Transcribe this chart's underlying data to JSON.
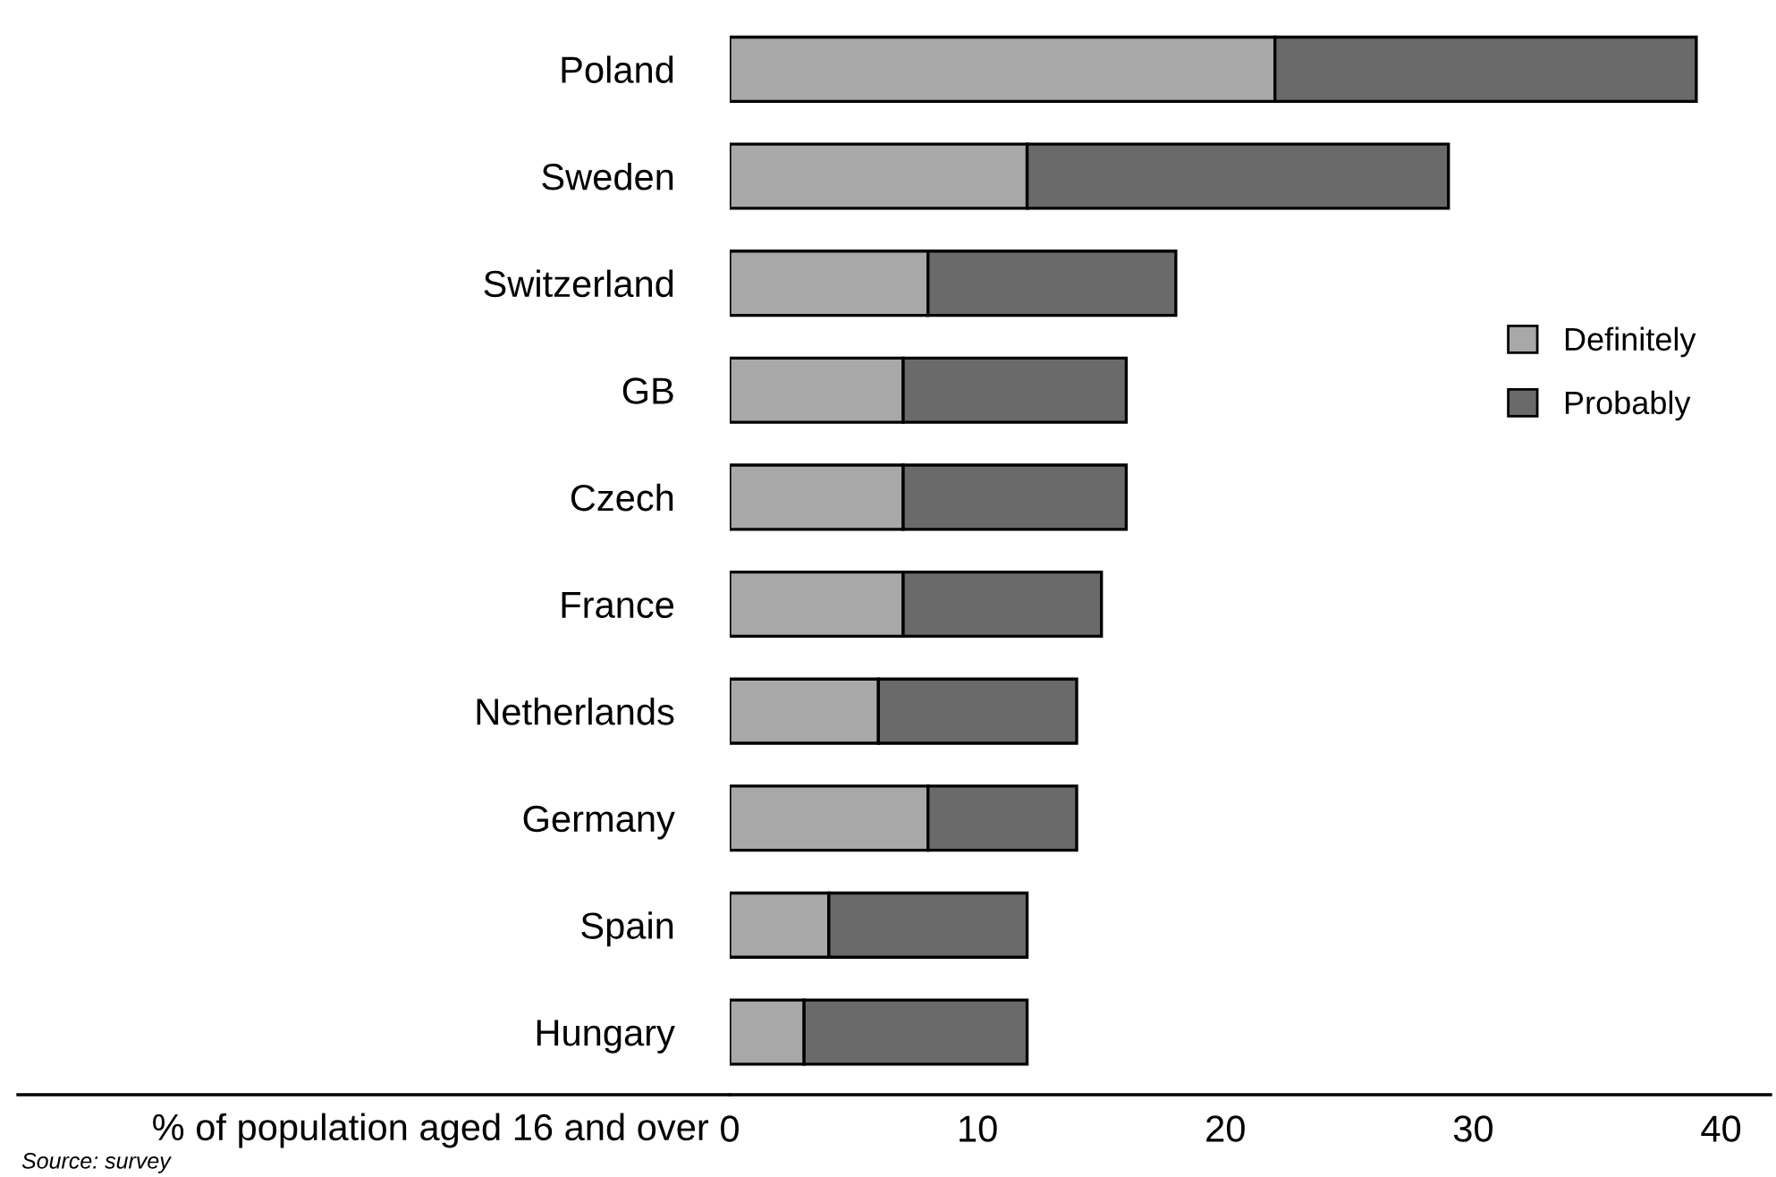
{
  "chart_data": {
    "type": "bar",
    "orientation": "horizontal",
    "stacked": true,
    "categories": [
      "Poland",
      "Sweden",
      "Switzerland",
      "GB",
      "Czech",
      "France",
      "Netherlands",
      "Germany",
      "Spain",
      "Hungary"
    ],
    "series": [
      {
        "name": "Definitely",
        "color": "#a8a8a8",
        "values": [
          22,
          12,
          8,
          7,
          7,
          7,
          6,
          8,
          4,
          3
        ]
      },
      {
        "name": "Probably",
        "color": "#6a6a6a",
        "values": [
          17,
          17,
          10,
          9,
          9,
          8,
          8,
          6,
          8,
          9
        ]
      }
    ],
    "xlabel": "% of population aged 16 and over",
    "xlim": [
      0,
      42
    ],
    "xticks": [
      0,
      10,
      20,
      30,
      40
    ],
    "grid": false,
    "legend": "right",
    "annotations": [
      "Source: survey"
    ]
  }
}
